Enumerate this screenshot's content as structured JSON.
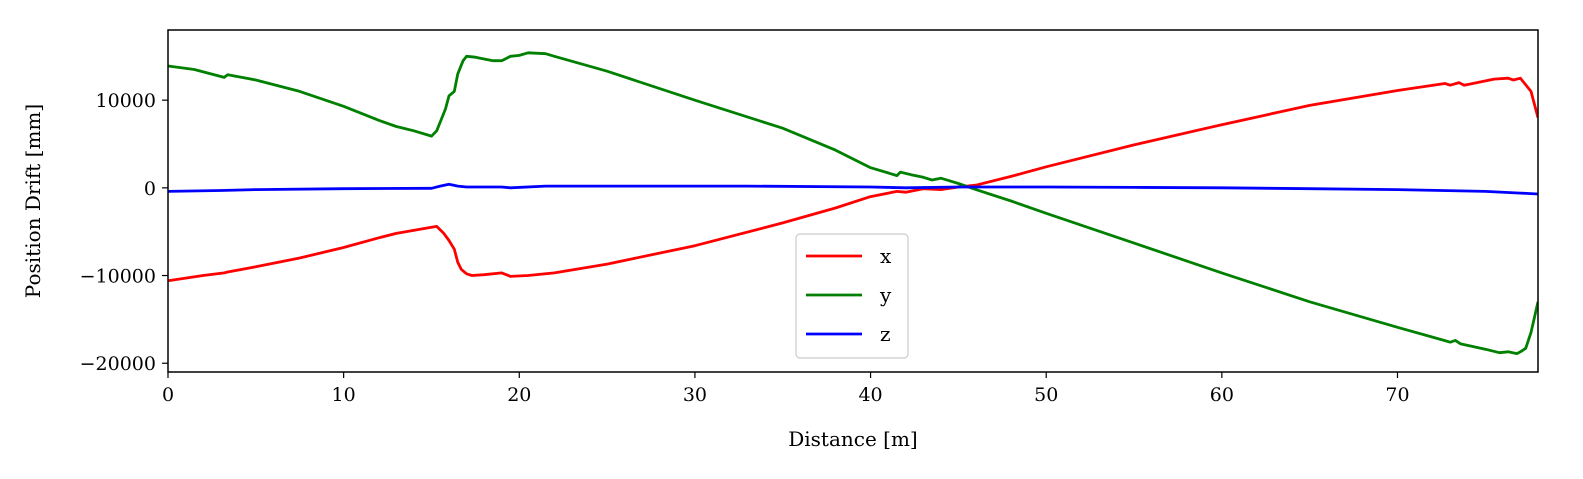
{
  "chart_data": {
    "type": "line",
    "title": "",
    "xlabel": "Distance [m]",
    "ylabel": "Position Drift [mm]",
    "xlim": [
      0,
      78
    ],
    "ylim": [
      -21000,
      18000
    ],
    "x_ticks": [
      0,
      10,
      20,
      30,
      40,
      50,
      60,
      70
    ],
    "x_tick_labels": [
      "0",
      "10",
      "20",
      "30",
      "40",
      "50",
      "60",
      "70"
    ],
    "y_ticks": [
      -20000,
      -10000,
      0,
      10000
    ],
    "y_tick_labels": [
      "−20000",
      "−10000",
      "0",
      "10000"
    ],
    "grid": false,
    "legend": "lower-center",
    "series": [
      {
        "name": "x",
        "color": "#ff0000",
        "points": [
          [
            0,
            -10600
          ],
          [
            2,
            -10000
          ],
          [
            3.2,
            -9700
          ],
          [
            3.4,
            -9600
          ],
          [
            5,
            -9000
          ],
          [
            7.5,
            -8000
          ],
          [
            10,
            -6800
          ],
          [
            12,
            -5700
          ],
          [
            13,
            -5200
          ],
          [
            15,
            -4500
          ],
          [
            15.3,
            -4400
          ],
          [
            15.7,
            -5200
          ],
          [
            16,
            -6000
          ],
          [
            16.3,
            -7000
          ],
          [
            16.5,
            -8500
          ],
          [
            16.7,
            -9300
          ],
          [
            17,
            -9800
          ],
          [
            17.3,
            -10000
          ],
          [
            18,
            -9900
          ],
          [
            19,
            -9700
          ],
          [
            19.5,
            -10100
          ],
          [
            20.5,
            -10000
          ],
          [
            22,
            -9700
          ],
          [
            25,
            -8700
          ],
          [
            30,
            -6600
          ],
          [
            35,
            -4000
          ],
          [
            38,
            -2300
          ],
          [
            40,
            -1000
          ],
          [
            41.5,
            -400
          ],
          [
            42,
            -500
          ],
          [
            43,
            -100
          ],
          [
            44,
            -200
          ],
          [
            45,
            100
          ],
          [
            46,
            300
          ],
          [
            48,
            1300
          ],
          [
            50,
            2400
          ],
          [
            55,
            4900
          ],
          [
            60,
            7200
          ],
          [
            65,
            9400
          ],
          [
            70,
            11100
          ],
          [
            72.7,
            11900
          ],
          [
            73,
            11700
          ],
          [
            73.5,
            12000
          ],
          [
            73.8,
            11700
          ],
          [
            75.5,
            12400
          ],
          [
            76.3,
            12500
          ],
          [
            76.6,
            12300
          ],
          [
            77,
            12500
          ],
          [
            77.6,
            11000
          ],
          [
            78,
            8000
          ]
        ]
      },
      {
        "name": "y",
        "color": "#008000",
        "points": [
          [
            0,
            13900
          ],
          [
            1.5,
            13500
          ],
          [
            3.2,
            12600
          ],
          [
            3.4,
            12900
          ],
          [
            5,
            12300
          ],
          [
            7.5,
            11000
          ],
          [
            10,
            9300
          ],
          [
            12,
            7700
          ],
          [
            13,
            7000
          ],
          [
            14,
            6500
          ],
          [
            15,
            5900
          ],
          [
            15.3,
            6500
          ],
          [
            15.5,
            7500
          ],
          [
            15.8,
            9000
          ],
          [
            16,
            10500
          ],
          [
            16.3,
            11000
          ],
          [
            16.5,
            13000
          ],
          [
            16.8,
            14500
          ],
          [
            17,
            15000
          ],
          [
            17.5,
            14900
          ],
          [
            18.5,
            14500
          ],
          [
            19,
            14500
          ],
          [
            19.5,
            15000
          ],
          [
            20,
            15100
          ],
          [
            20.5,
            15400
          ],
          [
            21.5,
            15300
          ],
          [
            22,
            15000
          ],
          [
            25,
            13300
          ],
          [
            30,
            10000
          ],
          [
            35,
            6800
          ],
          [
            38,
            4300
          ],
          [
            40,
            2300
          ],
          [
            41,
            1700
          ],
          [
            41.5,
            1400
          ],
          [
            41.7,
            1800
          ],
          [
            42.3,
            1500
          ],
          [
            43,
            1200
          ],
          [
            43.5,
            900
          ],
          [
            44,
            1100
          ],
          [
            44.5,
            800
          ],
          [
            45,
            500
          ],
          [
            46,
            -200
          ],
          [
            48,
            -1500
          ],
          [
            50,
            -2900
          ],
          [
            55,
            -6300
          ],
          [
            60,
            -9700
          ],
          [
            65,
            -13000
          ],
          [
            70,
            -15900
          ],
          [
            72.5,
            -17300
          ],
          [
            73,
            -17600
          ],
          [
            73.3,
            -17400
          ],
          [
            73.6,
            -17800
          ],
          [
            75,
            -18400
          ],
          [
            75.8,
            -18800
          ],
          [
            76.3,
            -18700
          ],
          [
            76.8,
            -18900
          ],
          [
            77,
            -18700
          ],
          [
            77.3,
            -18300
          ],
          [
            77.6,
            -16500
          ],
          [
            78,
            -13000
          ]
        ]
      },
      {
        "name": "z",
        "color": "#0000ff",
        "points": [
          [
            0,
            -400
          ],
          [
            3,
            -300
          ],
          [
            5,
            -200
          ],
          [
            10,
            -100
          ],
          [
            15,
            -50
          ],
          [
            15.5,
            200
          ],
          [
            16,
            400
          ],
          [
            16.5,
            200
          ],
          [
            17,
            100
          ],
          [
            19,
            100
          ],
          [
            19.5,
            0
          ],
          [
            21.5,
            200
          ],
          [
            25,
            200
          ],
          [
            30,
            200
          ],
          [
            33,
            200
          ],
          [
            40,
            100
          ],
          [
            42,
            0
          ],
          [
            45,
            100
          ],
          [
            50,
            100
          ],
          [
            55,
            50
          ],
          [
            60,
            0
          ],
          [
            65,
            -100
          ],
          [
            70,
            -200
          ],
          [
            75,
            -400
          ],
          [
            77,
            -600
          ],
          [
            78,
            -700
          ]
        ]
      }
    ]
  }
}
